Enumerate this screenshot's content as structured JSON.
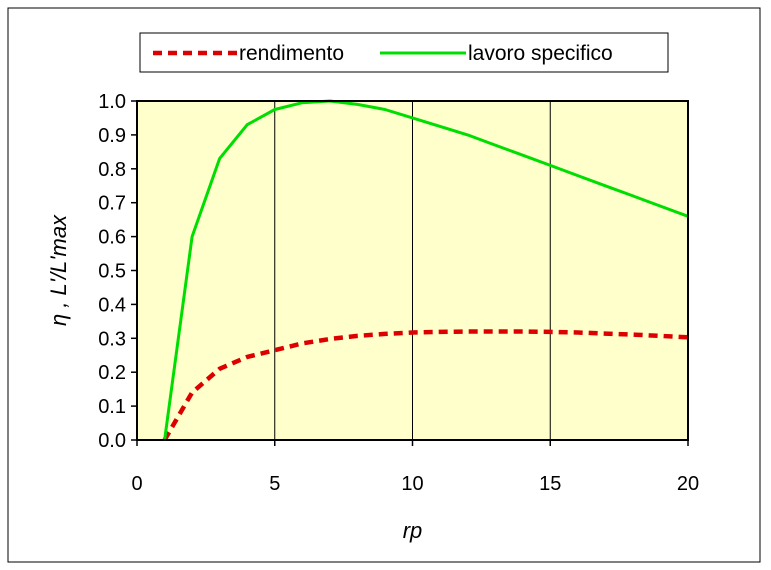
{
  "chart_data": {
    "type": "line",
    "title": "",
    "xlabel": "rp",
    "ylabel": "η , L'/L'max",
    "xlim": [
      0,
      20
    ],
    "ylim": [
      0,
      1.0
    ],
    "x_ticks": [
      "0",
      "5",
      "10",
      "15",
      "20"
    ],
    "y_ticks": [
      "0.0",
      "0.1",
      "0.2",
      "0.3",
      "0.4",
      "0.5",
      "0.6",
      "0.7",
      "0.8",
      "0.9",
      "1.0"
    ],
    "grid": "vertical",
    "legend_position": "top",
    "plot_background": "#ffffcc",
    "series": [
      {
        "name": "rendimento",
        "color": "#dd0000",
        "style": "dashed",
        "x": [
          1,
          2,
          3,
          4,
          5,
          6,
          7,
          8,
          9,
          10,
          11,
          12,
          13,
          14,
          15,
          16,
          17,
          18,
          19,
          20
        ],
        "y": [
          0.0,
          0.14,
          0.21,
          0.245,
          0.265,
          0.285,
          0.298,
          0.307,
          0.313,
          0.317,
          0.319,
          0.32,
          0.32,
          0.32,
          0.319,
          0.317,
          0.314,
          0.311,
          0.307,
          0.303
        ]
      },
      {
        "name": "lavoro specifico",
        "color": "#00dd00",
        "style": "solid",
        "x": [
          1,
          2,
          3,
          4,
          5,
          6,
          7,
          8,
          9,
          10,
          11,
          12,
          13,
          14,
          15,
          16,
          17,
          18,
          19,
          20
        ],
        "y": [
          0.0,
          0.6,
          0.83,
          0.93,
          0.975,
          0.995,
          1.0,
          0.99,
          0.975,
          0.95,
          0.925,
          0.9,
          0.87,
          0.84,
          0.81,
          0.78,
          0.75,
          0.72,
          0.69,
          0.66
        ]
      }
    ]
  }
}
